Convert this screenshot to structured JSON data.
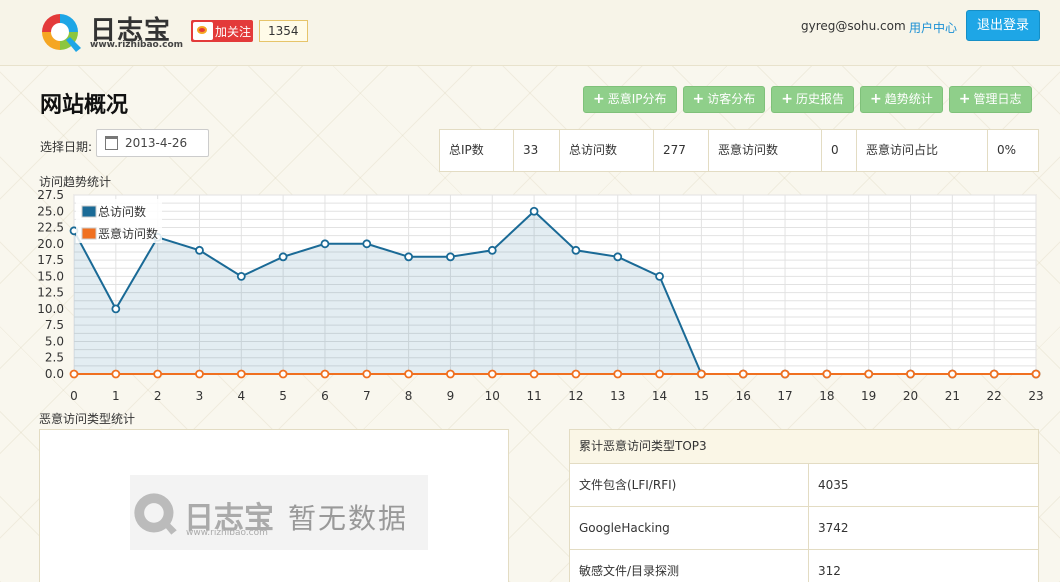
{
  "header": {
    "logo_text": "日志宝",
    "logo_url": "www.rizhibao.com",
    "weibo_follow": "加关注",
    "weibo_count": "1354",
    "user_email": "gyreg@sohu.com",
    "user_center": "用户中心",
    "logout": "退出登录"
  },
  "page": {
    "title": "网站概况",
    "actions": [
      "恶意IP分布",
      "访客分布",
      "历史报告",
      "趋势统计",
      "管理日志"
    ],
    "date_label": "选择日期:",
    "date_value": "2013-4-26"
  },
  "stats": {
    "ip_label": "总IP数",
    "ip_value": "33",
    "visits_label": "总访问数",
    "visits_value": "277",
    "malicious_label": "恶意访问数",
    "malicious_value": "0",
    "ratio_label": "恶意访问占比",
    "ratio_value": "0%"
  },
  "trend": {
    "label": "访问趋势统计",
    "chart_data": {
      "type": "area",
      "x": [
        0,
        1,
        2,
        3,
        4,
        5,
        6,
        7,
        8,
        9,
        10,
        11,
        12,
        13,
        14,
        15,
        16,
        17,
        18,
        19,
        20,
        21,
        22,
        23
      ],
      "series": [
        {
          "name": "总访问数",
          "color": "#1a6a96",
          "values": [
            22,
            10,
            21,
            19,
            15,
            18,
            20,
            20,
            18,
            18,
            19,
            25,
            19,
            18,
            15,
            0,
            0,
            0,
            0,
            0,
            0,
            0,
            0,
            0
          ]
        },
        {
          "name": "恶意访问数",
          "color": "#f07020",
          "values": [
            0,
            0,
            0,
            0,
            0,
            0,
            0,
            0,
            0,
            0,
            0,
            0,
            0,
            0,
            0,
            0,
            0,
            0,
            0,
            0,
            0,
            0,
            0,
            0
          ]
        }
      ],
      "y_ticks": [
        "0.0",
        "2.5",
        "5.0",
        "7.5",
        "10.0",
        "12.5",
        "15.0",
        "17.5",
        "20.0",
        "22.5",
        "25.0",
        "27.5"
      ],
      "ylim": [
        0,
        27.5
      ],
      "grid": true,
      "legend": "top-left"
    }
  },
  "malicious": {
    "label": "恶意访问类型统计",
    "empty_logo": "日志宝",
    "empty_url": "www.rizhibao.com",
    "empty_msg": "暂无数据"
  },
  "top3": {
    "title": "累计恶意访问类型TOP3",
    "rows": [
      {
        "name": "文件包含(LFI/RFI)",
        "value": "4035"
      },
      {
        "name": "GoogleHacking",
        "value": "3742"
      },
      {
        "name": "敏感文件/目录探测",
        "value": "312"
      }
    ]
  }
}
